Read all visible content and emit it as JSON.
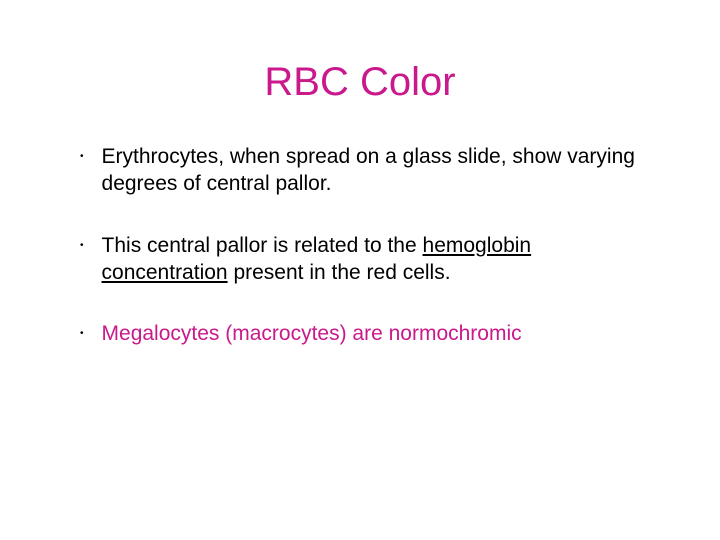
{
  "colors": {
    "accent": "#c9198c",
    "text": "#000000",
    "background": "#ffffff"
  },
  "typography": {
    "title_fontsize": 40,
    "body_fontsize": 21,
    "font_family": "Arial"
  },
  "title": "RBC Color",
  "bullets": [
    {
      "segments": [
        {
          "text": "Erythrocytes, when spread on a glass slide, show varying degrees of central pallor.",
          "accent": false,
          "underline": false
        }
      ]
    },
    {
      "segments": [
        {
          "text": "This central pallor is related to the ",
          "accent": false,
          "underline": false
        },
        {
          "text": "hemoglobin concentration",
          "accent": false,
          "underline": true
        },
        {
          "text": " present in the red cells.",
          "accent": false,
          "underline": false
        }
      ]
    },
    {
      "segments": [
        {
          "text": "Megalocytes (macrocytes) are normochromic",
          "accent": true,
          "underline": false
        }
      ]
    }
  ]
}
